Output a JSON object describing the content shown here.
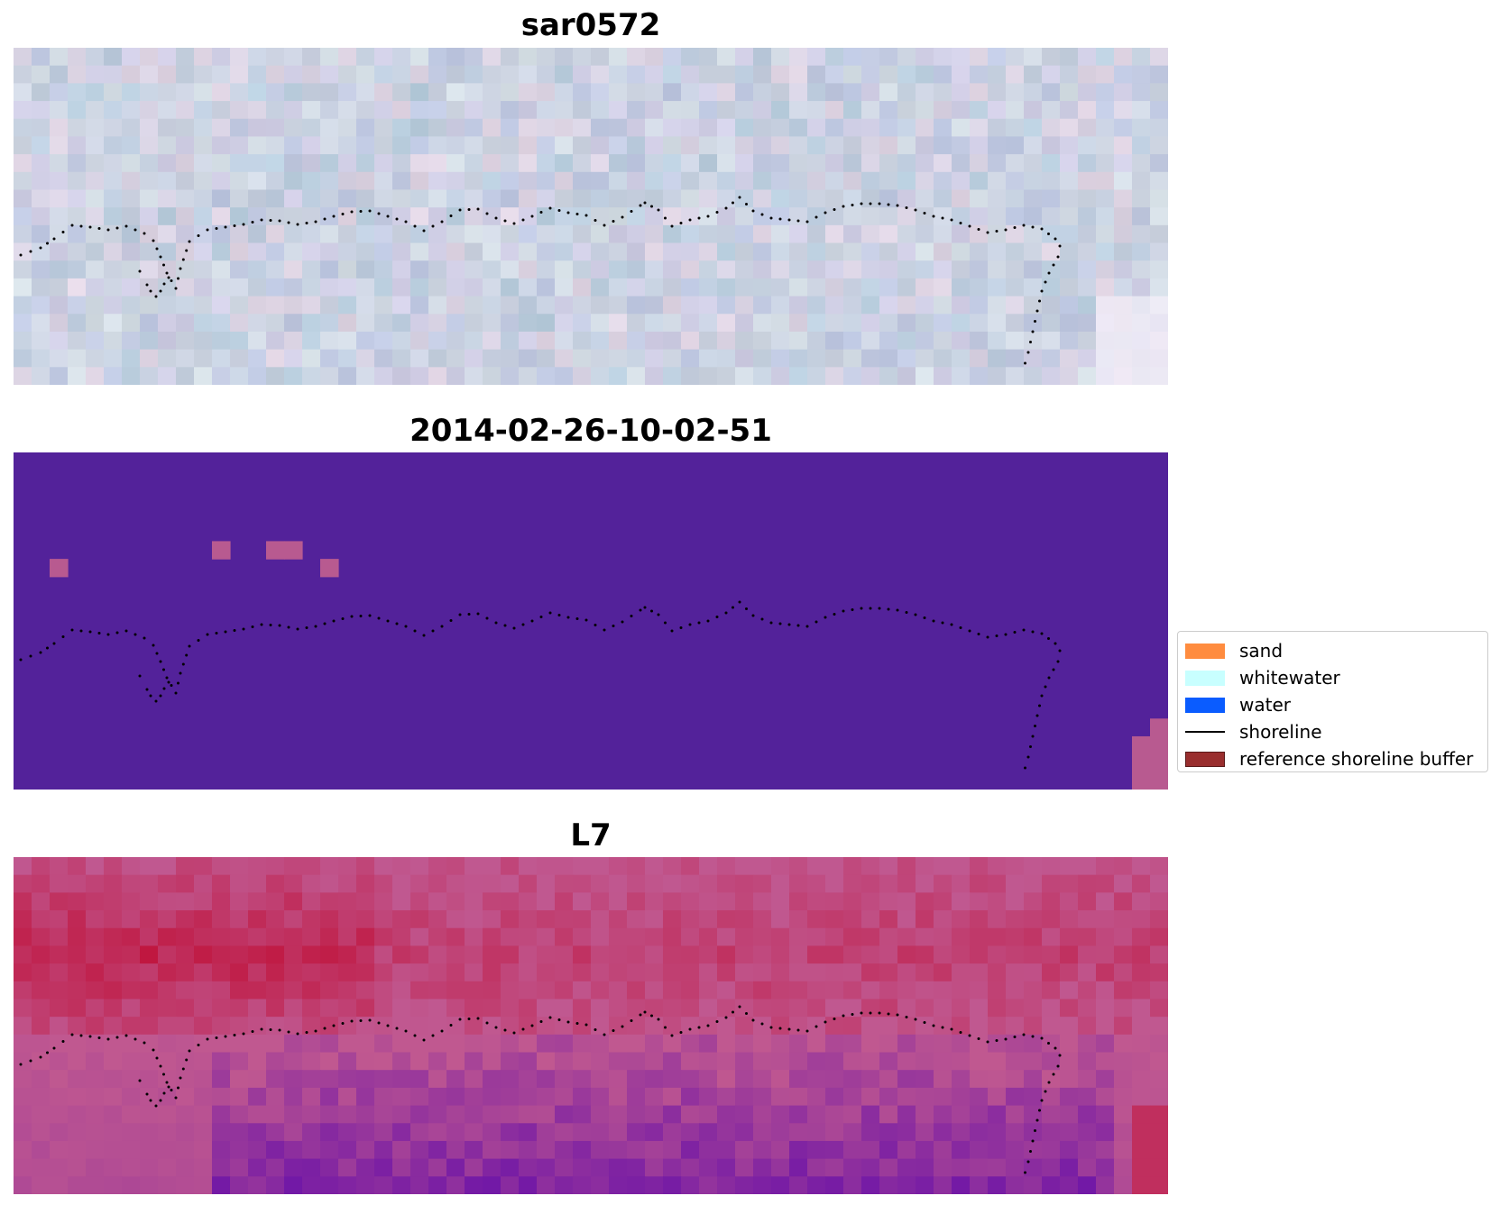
{
  "panels": [
    {
      "title": "sar0572",
      "kind": "rgb"
    },
    {
      "title": "2014-02-26-10-02-51",
      "kind": "classified"
    },
    {
      "title": "L7",
      "kind": "index"
    }
  ],
  "colors": {
    "rgb_base": "#c8cce0",
    "classified_bg": "#53229a",
    "classified_patch": "#b85a90",
    "index_high": "#c0143c",
    "index_mid": "#c05890",
    "index_low": "#6a12a8"
  },
  "legend": {
    "items": [
      {
        "label": "sand",
        "color": "#ff8c3f",
        "type": "patch"
      },
      {
        "label": "whitewater",
        "color": "#c8ffff",
        "type": "patch"
      },
      {
        "label": "water",
        "color": "#0a5cff",
        "type": "patch"
      },
      {
        "label": "shoreline",
        "color": "#000000",
        "type": "line"
      },
      {
        "label": "reference shoreline buffer",
        "color": "#992e2e",
        "type": "patch"
      }
    ]
  }
}
